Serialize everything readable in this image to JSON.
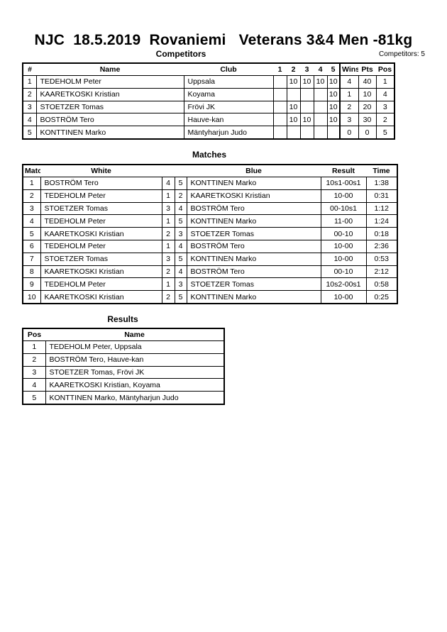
{
  "title": "NJC  18.5.2019  Rovaniemi   Veterans 3&4 Men -81kg",
  "competitors": {
    "heading": "Competitors",
    "count_label": "Competitors: 5",
    "headers": [
      "#",
      "Name",
      "Club",
      "1",
      "2",
      "3",
      "4",
      "5",
      "Wins",
      "Pts",
      "Pos"
    ],
    "rows": [
      [
        "1",
        "TEDEHOLM Peter",
        "Uppsala",
        "",
        "10",
        "10",
        "10",
        "10",
        "4",
        "40",
        "1"
      ],
      [
        "2",
        "KAARETKOSKI Kristian",
        "Koyama",
        "",
        "",
        "",
        "",
        "10",
        "1",
        "10",
        "4"
      ],
      [
        "3",
        "STOETZER Tomas",
        "Frövi JK",
        "",
        "10",
        "",
        "",
        "10",
        "2",
        "20",
        "3"
      ],
      [
        "4",
        "BOSTRÖM Tero",
        "Hauve-kan",
        "",
        "10",
        "10",
        "",
        "10",
        "3",
        "30",
        "2"
      ],
      [
        "5",
        "KONTTINEN Marko",
        "Mäntyharjun Judo",
        "",
        "",
        "",
        "",
        "",
        "0",
        "0",
        "5"
      ]
    ]
  },
  "matches": {
    "heading": "Matches",
    "headers": [
      "Match",
      "White",
      "",
      "",
      "Blue",
      "Result",
      "Time"
    ],
    "rows": [
      [
        "1",
        "BOSTRÖM Tero",
        "4",
        "5",
        "KONTTINEN Marko",
        "10s1-00s1",
        "1:38"
      ],
      [
        "2",
        "TEDEHOLM Peter",
        "1",
        "2",
        "KAARETKOSKI Kristian",
        "10-00",
        "0:31"
      ],
      [
        "3",
        "STOETZER Tomas",
        "3",
        "4",
        "BOSTRÖM Tero",
        "00-10s1",
        "1:12"
      ],
      [
        "4",
        "TEDEHOLM Peter",
        "1",
        "5",
        "KONTTINEN Marko",
        "11-00",
        "1:24"
      ],
      [
        "5",
        "KAARETKOSKI Kristian",
        "2",
        "3",
        "STOETZER Tomas",
        "00-10",
        "0:18"
      ],
      [
        "6",
        "TEDEHOLM Peter",
        "1",
        "4",
        "BOSTRÖM Tero",
        "10-00",
        "2:36"
      ],
      [
        "7",
        "STOETZER Tomas",
        "3",
        "5",
        "KONTTINEN Marko",
        "10-00",
        "0:53"
      ],
      [
        "8",
        "KAARETKOSKI Kristian",
        "2",
        "4",
        "BOSTRÖM Tero",
        "00-10",
        "2:12"
      ],
      [
        "9",
        "TEDEHOLM Peter",
        "1",
        "3",
        "STOETZER Tomas",
        "10s2-00s1",
        "0:58"
      ],
      [
        "10",
        "KAARETKOSKI Kristian",
        "2",
        "5",
        "KONTTINEN Marko",
        "10-00",
        "0:25"
      ]
    ]
  },
  "results": {
    "heading": "Results",
    "headers": [
      "Pos",
      "Name"
    ],
    "rows": [
      [
        "1",
        "TEDEHOLM Peter, Uppsala"
      ],
      [
        "2",
        "BOSTRÖM Tero, Hauve-kan"
      ],
      [
        "3",
        "STOETZER Tomas, Frövi JK"
      ],
      [
        "4",
        "KAARETKOSKI Kristian, Koyama"
      ],
      [
        "5",
        "KONTTINEN Marko, Mäntyharjun Judo"
      ]
    ]
  }
}
